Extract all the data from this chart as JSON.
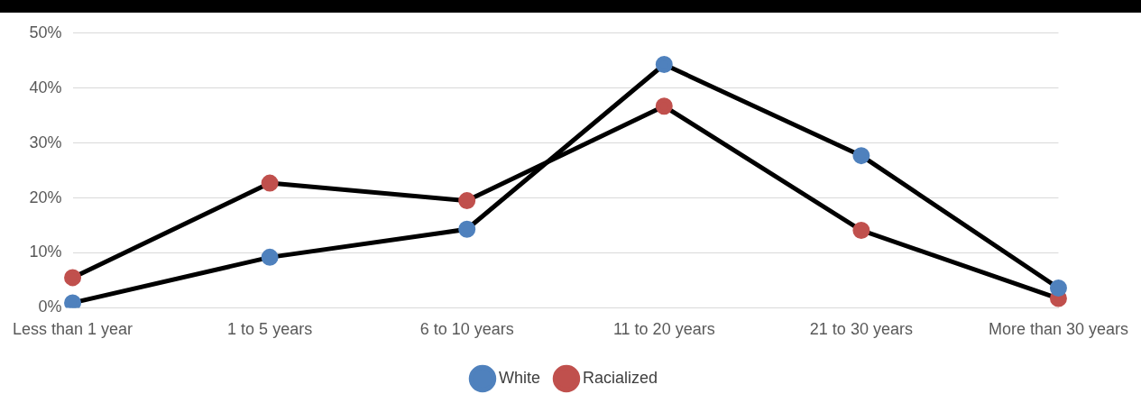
{
  "chart_data": {
    "type": "line",
    "categories": [
      "Less than 1 year",
      "1 to 5 years",
      "6 to 10 years",
      "11 to 20 years",
      "21 to 30 years",
      "More than 30 years"
    ],
    "series": [
      {
        "name": "White",
        "color": "#4f81bd",
        "values": [
          0.9,
          9.2,
          14.3,
          44.3,
          27.7,
          3.6
        ]
      },
      {
        "name": "Racialized",
        "color": "#c0504d",
        "values": [
          5.5,
          22.7,
          19.5,
          36.7,
          14.1,
          1.7
        ]
      }
    ],
    "ylim": [
      0,
      50
    ],
    "yticks": [
      {
        "value": 0,
        "label": "0%"
      },
      {
        "value": 10,
        "label": "10%"
      },
      {
        "value": 20,
        "label": "20%"
      },
      {
        "value": 30,
        "label": "30%"
      },
      {
        "value": 40,
        "label": "40%"
      },
      {
        "value": 50,
        "label": "50%"
      }
    ],
    "grid": "y",
    "legend": "bottom",
    "marker": "circle",
    "line_style": "solid"
  }
}
